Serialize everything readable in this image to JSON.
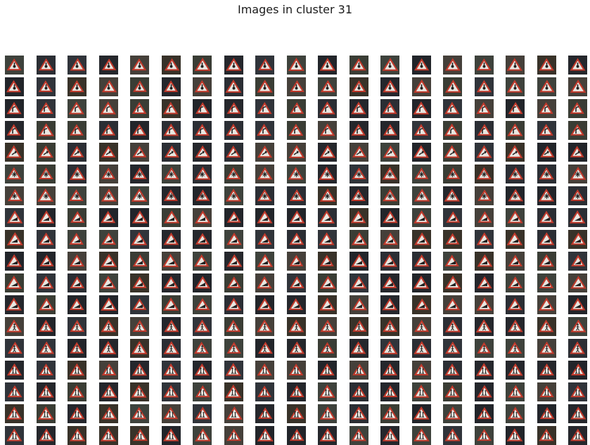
{
  "figure": {
    "title": "Images in cluster 31"
  },
  "grid": {
    "rows": 18,
    "cols": 19,
    "row_motifs": [
      "dot",
      "dot",
      "curve",
      "curve",
      "arrow",
      "snow",
      "snow",
      "slope",
      "slope",
      "slope",
      "slope",
      "slope",
      "person",
      "person",
      "kids",
      "kids",
      "kids",
      "kids"
    ],
    "content": "thumbnails of red-bordered triangular warning road signs"
  },
  "colors": {
    "page_background": "#ffffff",
    "sign_border": "#c0392b",
    "sign_fill": "#e8e6e0",
    "symbol": "#222222"
  }
}
